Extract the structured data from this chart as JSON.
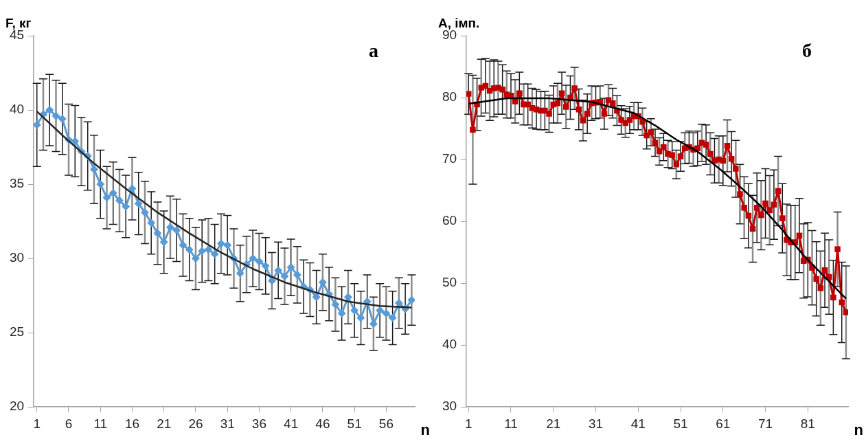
{
  "chart_data": [
    {
      "type": "line",
      "ylabel": "F, кг",
      "xlabel": "n",
      "annotations": [
        "а"
      ],
      "xlim": [
        0.5,
        60.5
      ],
      "xticks": [
        1,
        6,
        11,
        16,
        21,
        26,
        31,
        36,
        41,
        46,
        51,
        56
      ],
      "ylim": [
        20,
        45
      ],
      "yticks": [
        20,
        25,
        30,
        35,
        40,
        45
      ],
      "grid": false,
      "series": [
        {
          "color": "#5b9bd5",
          "marker": "diamond",
          "x": [
            1,
            2,
            3,
            4,
            5,
            6,
            7,
            8,
            9,
            10,
            11,
            12,
            13,
            14,
            15,
            16,
            17,
            18,
            19,
            20,
            21,
            22,
            23,
            24,
            25,
            26,
            27,
            28,
            29,
            30,
            31,
            32,
            33,
            34,
            35,
            36,
            37,
            38,
            39,
            40,
            41,
            42,
            43,
            44,
            45,
            46,
            47,
            48,
            49,
            50,
            51,
            52,
            53,
            54,
            55,
            56,
            57,
            58,
            59,
            60
          ],
          "values": [
            39.0,
            39.7,
            40.0,
            39.6,
            39.4,
            38.0,
            37.9,
            37.2,
            36.9,
            36.0,
            35.0,
            34.1,
            34.4,
            33.9,
            33.5,
            34.7,
            33.7,
            33.1,
            32.4,
            31.7,
            31.1,
            32.1,
            31.9,
            30.9,
            30.6,
            30.0,
            30.5,
            30.6,
            30.3,
            31.0,
            30.9,
            30.0,
            29.0,
            29.6,
            30.0,
            29.8,
            29.5,
            28.5,
            29.2,
            28.8,
            29.4,
            28.9,
            28.1,
            27.9,
            27.4,
            28.4,
            27.6,
            26.9,
            26.3,
            27.4,
            26.5,
            26.0,
            27.1,
            25.6,
            26.5,
            26.3,
            26.0,
            27.0,
            26.6,
            27.2
          ],
          "errors": [
            2.8,
            2.4,
            2.4,
            2.4,
            2.4,
            2.4,
            2.4,
            2.3,
            2.3,
            2.3,
            2.3,
            2.1,
            2.1,
            2.1,
            2.1,
            2.1,
            2.1,
            2.1,
            2.1,
            2.1,
            2.1,
            2.1,
            2.1,
            2.1,
            2.1,
            2.1,
            2.1,
            2.1,
            2.0,
            2.0,
            2.0,
            2.0,
            1.9,
            1.9,
            1.9,
            1.9,
            1.9,
            1.9,
            1.9,
            1.9,
            1.9,
            1.9,
            1.8,
            1.8,
            1.8,
            1.9,
            1.8,
            1.8,
            1.8,
            1.8,
            1.8,
            1.8,
            1.8,
            1.8,
            1.8,
            1.8,
            1.8,
            1.7,
            1.7,
            1.7
          ]
        },
        {
          "color": "#262626",
          "marker": "none",
          "x": [
            1,
            5,
            10,
            15,
            20,
            25,
            30,
            35,
            40,
            45,
            50,
            55,
            60
          ],
          "values": [
            39.9,
            38.3,
            36.4,
            34.7,
            33.1,
            31.7,
            30.4,
            29.3,
            28.4,
            27.7,
            27.1,
            26.8,
            26.7
          ]
        }
      ]
    },
    {
      "type": "line",
      "ylabel": "A, імп.",
      "xlabel": "n",
      "annotations": [
        "б"
      ],
      "xlim": [
        0.5,
        90.5
      ],
      "xticks": [
        1,
        11,
        21,
        31,
        41,
        51,
        61,
        71,
        81
      ],
      "ylim": [
        30,
        90
      ],
      "yticks": [
        30,
        40,
        50,
        60,
        70,
        80,
        90
      ],
      "grid": false,
      "series": [
        {
          "color": "#c00000",
          "marker": "square",
          "x": [
            1,
            2,
            3,
            4,
            5,
            6,
            7,
            8,
            9,
            10,
            11,
            12,
            13,
            14,
            15,
            16,
            17,
            18,
            19,
            20,
            21,
            22,
            23,
            24,
            25,
            26,
            27,
            28,
            29,
            30,
            31,
            32,
            33,
            34,
            35,
            36,
            37,
            38,
            39,
            40,
            41,
            42,
            43,
            44,
            45,
            46,
            47,
            48,
            49,
            50,
            51,
            52,
            53,
            54,
            55,
            56,
            57,
            58,
            59,
            60,
            61,
            62,
            63,
            64,
            65,
            66,
            67,
            68,
            69,
            70,
            71,
            72,
            73,
            74,
            75,
            76,
            77,
            78,
            79,
            80,
            81,
            82,
            83,
            84,
            85,
            86,
            87,
            88,
            89,
            90
          ],
          "values": [
            80.6,
            74.8,
            78.9,
            81.6,
            81.9,
            81.1,
            81.5,
            81.6,
            81.3,
            80.5,
            80.3,
            79.4,
            80.7,
            78.9,
            78.9,
            78.3,
            78.1,
            77.9,
            77.9,
            77.4,
            78.9,
            79.1,
            80.7,
            78.5,
            80.0,
            81.5,
            78.1,
            76.3,
            77.4,
            79.1,
            79.2,
            79.3,
            77.4,
            79.6,
            79.1,
            77.9,
            76.4,
            75.9,
            76.4,
            77.0,
            77.0,
            76.1,
            73.9,
            74.4,
            72.7,
            71.3,
            72.0,
            70.9,
            70.7,
            69.2,
            70.5,
            71.8,
            72.0,
            71.6,
            71.8,
            72.7,
            72.4,
            70.9,
            69.8,
            70.0,
            69.8,
            72.2,
            70.1,
            68.5,
            64.4,
            62.2,
            60.9,
            58.8,
            62.2,
            61.0,
            62.9,
            61.8,
            62.7,
            64.9,
            60.5,
            57.0,
            56.6,
            56.6,
            57.7,
            53.6,
            53.8,
            52.5,
            50.7,
            49.2,
            52.1,
            51.0,
            47.7,
            55.5,
            46.9,
            45.3
          ],
          "errors": [
            3.3,
            8.8,
            4.2,
            4.6,
            4.4,
            4.8,
            4.6,
            4.3,
            4.0,
            3.8,
            3.6,
            3.5,
            3.4,
            3.3,
            3.3,
            3.2,
            3.2,
            3.1,
            3.1,
            3.0,
            3.0,
            3.2,
            3.4,
            3.5,
            3.5,
            3.4,
            3.3,
            3.3,
            3.2,
            2.8,
            2.6,
            2.6,
            2.5,
            2.5,
            2.4,
            2.4,
            2.3,
            2.3,
            2.2,
            2.2,
            2.2,
            2.2,
            2.2,
            2.2,
            2.2,
            2.2,
            2.2,
            2.2,
            2.2,
            2.3,
            2.4,
            2.5,
            2.6,
            2.7,
            2.8,
            3.0,
            3.2,
            3.4,
            3.6,
            3.8,
            4.0,
            4.2,
            4.4,
            4.6,
            4.8,
            5.0,
            5.2,
            5.4,
            5.6,
            5.6,
            5.6,
            5.6,
            5.6,
            5.6,
            5.6,
            5.8,
            6.0,
            6.0,
            6.0,
            6.0,
            6.0,
            6.0,
            6.0,
            6.0,
            6.0,
            6.0,
            6.0,
            6.0,
            6.5,
            7.5
          ]
        },
        {
          "color": "#000000",
          "marker": "none",
          "x": [
            1,
            10,
            20,
            30,
            40,
            45,
            50,
            55,
            60,
            65,
            70,
            75,
            80,
            85,
            90
          ],
          "values": [
            79.0,
            79.9,
            79.9,
            79.3,
            77.5,
            75.5,
            73.2,
            71.3,
            68.6,
            65.6,
            62.4,
            58.6,
            54.5,
            51.0,
            47.5
          ]
        }
      ]
    }
  ]
}
